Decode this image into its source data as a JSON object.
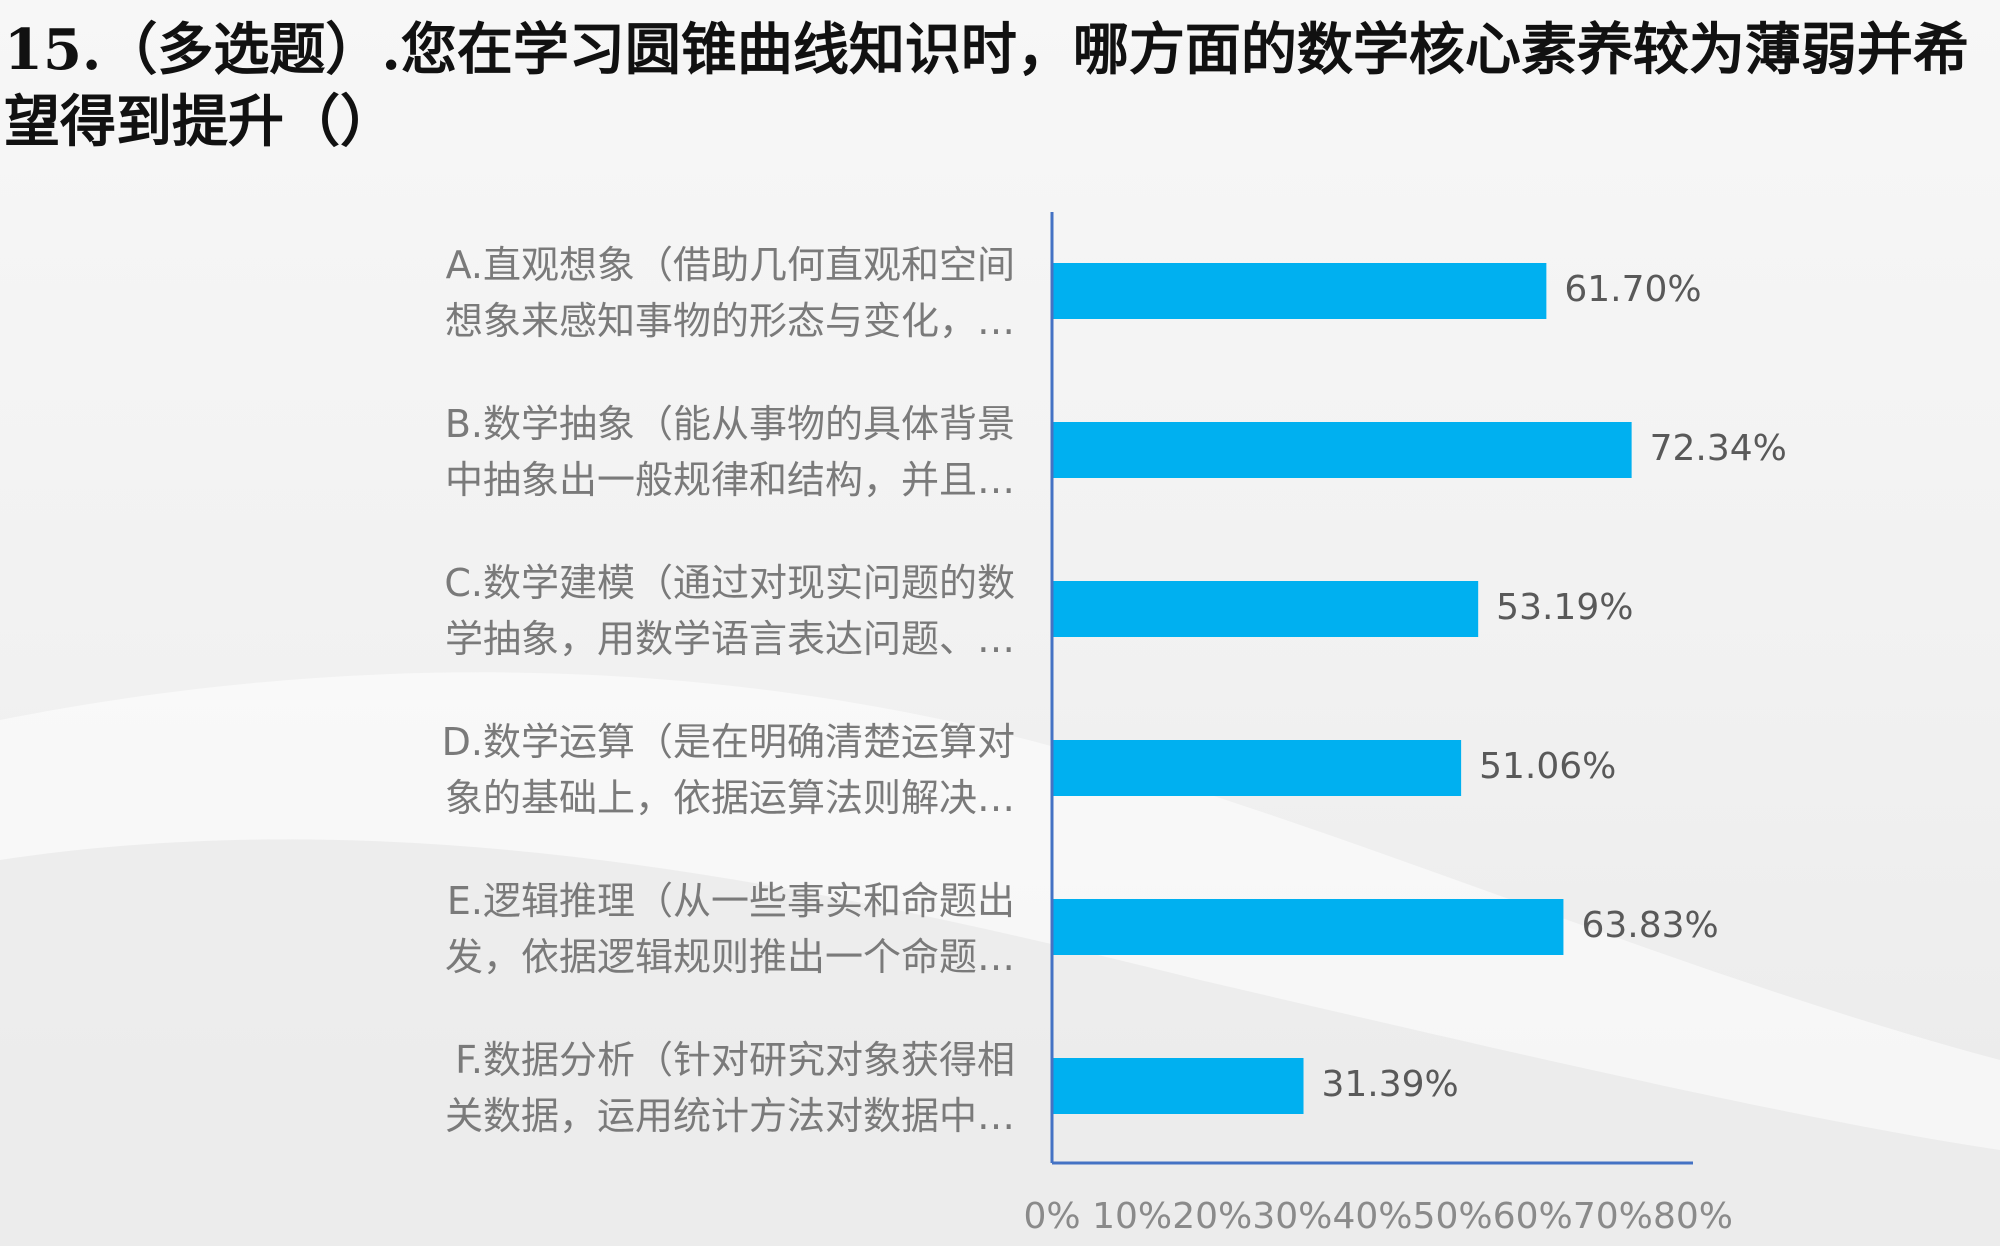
{
  "title": "15.（多选题）.您在学习圆锥曲线知识时，哪方面的数学核心素养较为薄弱并希望得到提升（）",
  "colors": {
    "bar": "#00b0f0",
    "axis": "#4472c4"
  },
  "chart_data": {
    "type": "bar",
    "orientation": "horizontal",
    "title": "15.（多选题）.您在学习圆锥曲线知识时，哪方面的数学核心素养较为薄弱并希望得到提升（）",
    "categories": [
      [
        "A.直观想象（借助几何直观和空间",
        "想象来感知事物的形态与变化，…"
      ],
      [
        "B.数学抽象（能从事物的具体背景",
        "中抽象出一般规律和结构，并且…"
      ],
      [
        "C.数学建模（通过对现实问题的数",
        "学抽象，用数学语言表达问题、…"
      ],
      [
        "D.数学运算（是在明确清楚运算对",
        "象的基础上，依据运算法则解决…"
      ],
      [
        "E.逻辑推理（从一些事实和命题出",
        "发，依据逻辑规则推出一个命题…"
      ],
      [
        "F.数据分析（针对研究对象获得相",
        "关数据，运用统计方法对数据中…"
      ]
    ],
    "values": [
      61.7,
      72.34,
      53.19,
      51.06,
      63.83,
      31.39
    ],
    "value_labels": [
      "61.70%",
      "72.34%",
      "53.19%",
      "51.06%",
      "63.83%",
      "31.39%"
    ],
    "xlim": [
      0,
      80
    ],
    "ticks": [
      0,
      10,
      20,
      30,
      40,
      50,
      60,
      70,
      80
    ],
    "tick_labels": [
      "0%",
      "10%",
      "20%",
      "30%",
      "40%",
      "50%",
      "60%",
      "70%",
      "80%"
    ],
    "grid": false,
    "legend": "none"
  }
}
